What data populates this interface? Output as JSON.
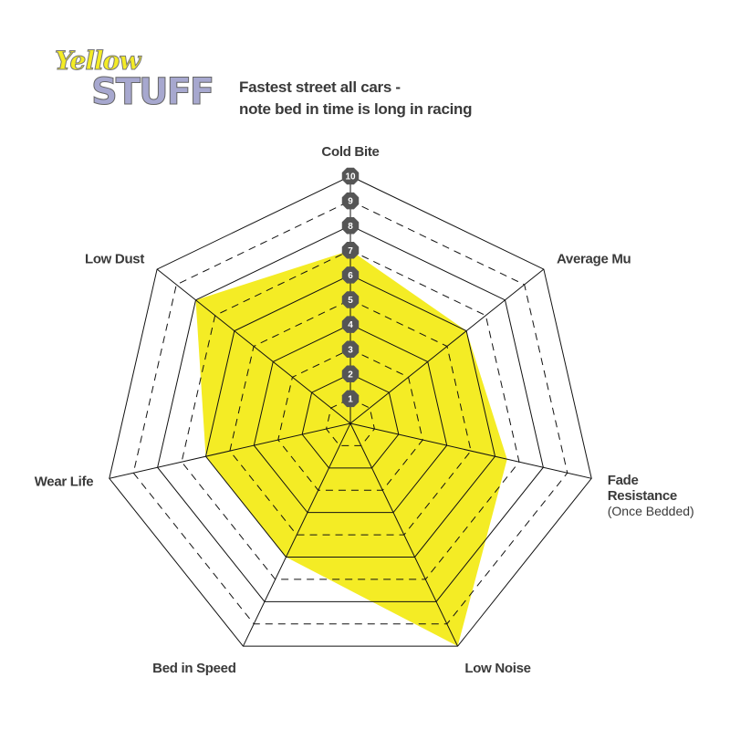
{
  "chart_data": {
    "type": "radar",
    "logo": [
      "Yellow",
      "STUFF"
    ],
    "title": [
      "Fastest street all cars -",
      "note bed in time is long in racing"
    ],
    "categories": [
      "Cold Bite",
      "Average Mu",
      "Fade Resistance",
      "Low Noise",
      "Bed in Speed",
      "Wear Life",
      "Low Dust"
    ],
    "category_sublabel": {
      "index": 2,
      "text": "(Once Bedded)"
    },
    "values": [
      7,
      6,
      6.5,
      10,
      6,
      6,
      8
    ],
    "color": "#f4ec25",
    "rlim": [
      0,
      10
    ],
    "rticks": [
      1,
      2,
      3,
      4,
      5,
      6,
      7,
      8,
      9,
      10
    ],
    "grid": true
  }
}
